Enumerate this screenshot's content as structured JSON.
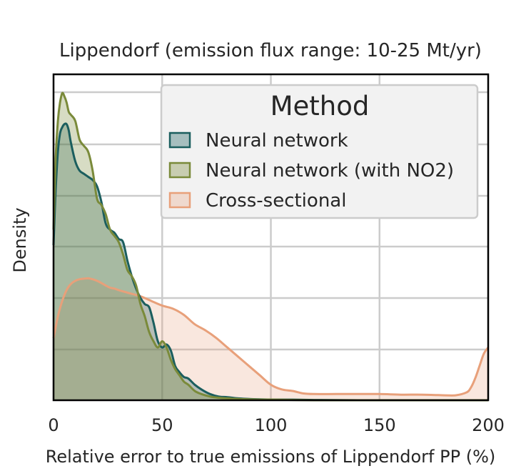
{
  "chart_data": {
    "type": "area",
    "title": "Lippendorf (emission flux range: 10-25 Mt/yr)",
    "xlabel": "Relative error to true emissions of Lippendorf PP (%)",
    "ylabel": "Density",
    "xlim": [
      0,
      200
    ],
    "ylim": [
      0,
      1
    ],
    "xticks": [
      "0",
      "50",
      "100",
      "150",
      "200"
    ],
    "grid": true,
    "legend": {
      "title": "Method",
      "position": "upper-right"
    },
    "series": [
      {
        "name": "Neural network",
        "color": "#1b5e5e",
        "fill_opacity": 0.3,
        "x": [
          0,
          1,
          2,
          3,
          4,
          5,
          6,
          7,
          8,
          10,
          12,
          14,
          16,
          18,
          20,
          22,
          24,
          26,
          28,
          30,
          32,
          34,
          36,
          38,
          40,
          42,
          44,
          46,
          48,
          50,
          52,
          54,
          56,
          58,
          60,
          62,
          65,
          68,
          72,
          76,
          80,
          85,
          90,
          95,
          100,
          110,
          120,
          140,
          200
        ],
        "y": [
          0.5,
          0.68,
          0.8,
          0.86,
          0.88,
          0.89,
          0.89,
          0.87,
          0.83,
          0.77,
          0.74,
          0.73,
          0.72,
          0.71,
          0.69,
          0.64,
          0.57,
          0.55,
          0.54,
          0.52,
          0.51,
          0.45,
          0.4,
          0.36,
          0.33,
          0.31,
          0.3,
          0.25,
          0.19,
          0.17,
          0.18,
          0.16,
          0.11,
          0.09,
          0.075,
          0.07,
          0.05,
          0.035,
          0.02,
          0.012,
          0.01,
          0.006,
          0.004,
          0.003,
          0.002,
          0.002,
          0.001,
          0.0,
          0.0
        ]
      },
      {
        "name": "Neural network (with NO2)",
        "color": "#7a8a3a",
        "fill_opacity": 0.3,
        "x": [
          0,
          1,
          2,
          3,
          4,
          5,
          6,
          7,
          8,
          10,
          12,
          14,
          16,
          18,
          20,
          22,
          24,
          26,
          28,
          30,
          32,
          34,
          36,
          38,
          40,
          42,
          44,
          46,
          48,
          50,
          52,
          54,
          56,
          58,
          60,
          62,
          65,
          68,
          72,
          76,
          80,
          85,
          90,
          95,
          100,
          110,
          120,
          140,
          200
        ],
        "y": [
          0.55,
          0.78,
          0.9,
          0.96,
          0.99,
          0.98,
          0.96,
          0.93,
          0.92,
          0.9,
          0.84,
          0.82,
          0.8,
          0.74,
          0.65,
          0.63,
          0.6,
          0.55,
          0.53,
          0.51,
          0.47,
          0.42,
          0.4,
          0.37,
          0.31,
          0.27,
          0.22,
          0.19,
          0.17,
          0.19,
          0.17,
          0.13,
          0.1,
          0.08,
          0.06,
          0.05,
          0.03,
          0.02,
          0.012,
          0.008,
          0.006,
          0.004,
          0.003,
          0.002,
          0.002,
          0.001,
          0.0,
          0.0,
          0.0
        ]
      },
      {
        "name": "Cross-sectional",
        "color": "#e8a07a",
        "fill_opacity": 0.25,
        "x": [
          0,
          2,
          4,
          6,
          8,
          10,
          12,
          14,
          16,
          18,
          20,
          22,
          24,
          26,
          28,
          30,
          35,
          40,
          45,
          50,
          55,
          60,
          65,
          70,
          75,
          80,
          85,
          90,
          95,
          100,
          105,
          110,
          115,
          120,
          130,
          140,
          150,
          160,
          170,
          180,
          185,
          190,
          192,
          194,
          196,
          198,
          200
        ],
        "y": [
          0.2,
          0.27,
          0.32,
          0.355,
          0.375,
          0.385,
          0.39,
          0.392,
          0.393,
          0.39,
          0.385,
          0.378,
          0.37,
          0.363,
          0.36,
          0.355,
          0.345,
          0.335,
          0.32,
          0.305,
          0.295,
          0.275,
          0.245,
          0.225,
          0.2,
          0.17,
          0.14,
          0.11,
          0.08,
          0.05,
          0.035,
          0.03,
          0.022,
          0.02,
          0.02,
          0.02,
          0.02,
          0.018,
          0.018,
          0.016,
          0.016,
          0.025,
          0.04,
          0.07,
          0.11,
          0.15,
          0.17
        ]
      }
    ]
  }
}
